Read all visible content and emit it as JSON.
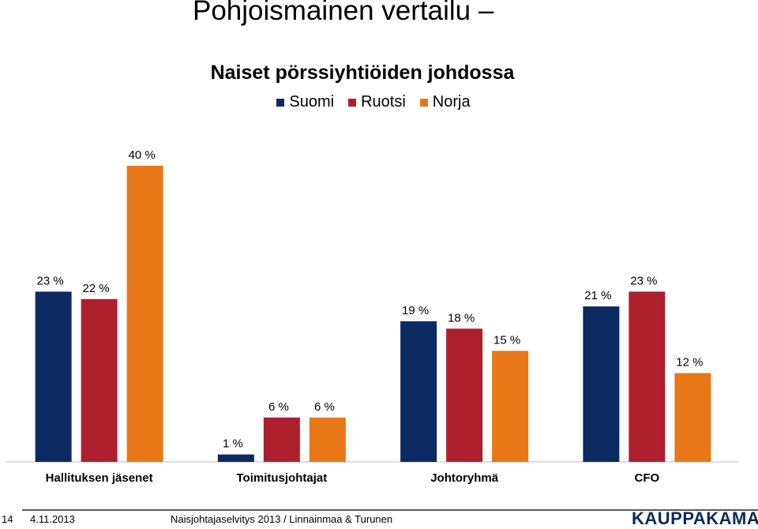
{
  "page": {
    "title": "Pohjoismainen vertailu –",
    "footer": {
      "page_number": "14",
      "date": "4.11.2013",
      "source": "Naisjohtajaselvitys 2013 / Linnainmaa & Turunen",
      "logo": "KAUPPAKAMARI"
    }
  },
  "chart_data": {
    "type": "bar",
    "title": "Naiset pörssiyhtiöiden johdossa",
    "xlabel": "",
    "ylabel": "",
    "ylim": [
      0,
      40
    ],
    "grid": false,
    "legend_position": "top",
    "categories": [
      "Hallituksen jäsenet",
      "Toimitusjohtajat",
      "Johtoryhmä",
      "CFO"
    ],
    "series": [
      {
        "name": "Suomi",
        "color": "#0b2a62",
        "values": [
          23,
          1,
          19,
          21
        ]
      },
      {
        "name": "Ruotsi",
        "color": "#ae1f2e",
        "values": [
          22,
          6,
          18,
          23
        ]
      },
      {
        "name": "Norja",
        "color": "#e87817",
        "values": [
          40,
          6,
          15,
          12
        ]
      }
    ],
    "value_suffix": " %"
  }
}
